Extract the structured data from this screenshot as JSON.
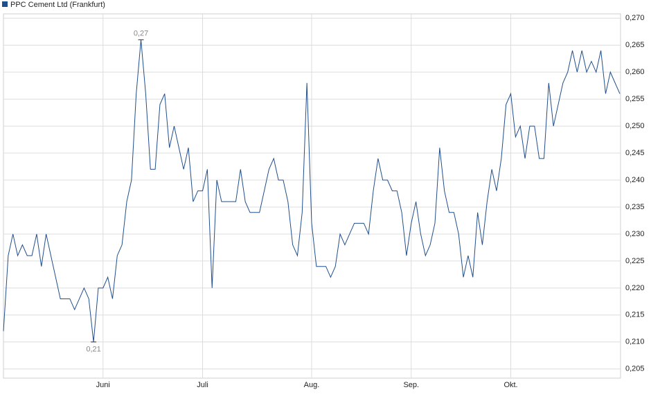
{
  "chart_data": {
    "type": "line",
    "categories": [
      null,
      null,
      null,
      null,
      null,
      null,
      null,
      null,
      null,
      null,
      null,
      null,
      null,
      null,
      null,
      null,
      null,
      null,
      null,
      null,
      null,
      "Juni",
      null,
      null,
      null,
      null,
      null,
      null,
      null,
      null,
      null,
      null,
      null,
      null,
      null,
      null,
      null,
      null,
      null,
      null,
      null,
      null,
      "Juli",
      null,
      null,
      null,
      null,
      null,
      null,
      null,
      null,
      null,
      null,
      null,
      null,
      null,
      null,
      null,
      null,
      null,
      null,
      null,
      null,
      null,
      null,
      "Aug.",
      null,
      null,
      null,
      null,
      null,
      null,
      null,
      null,
      null,
      null,
      null,
      null,
      null,
      null,
      null,
      null,
      null,
      null,
      null,
      null,
      "Sep.",
      null,
      null,
      null,
      null,
      null,
      null,
      null,
      null,
      null,
      null,
      null,
      null,
      null,
      null,
      null,
      null,
      null,
      null,
      null,
      null,
      "Okt.",
      null,
      null,
      null,
      null,
      null,
      null,
      null,
      null,
      null,
      null,
      null,
      null,
      null,
      null,
      null,
      null,
      null,
      null,
      null,
      null,
      null,
      null,
      null
    ],
    "series": [
      {
        "name": "PPC Cement Ltd (Frankfurt)",
        "color": "#1f4e8c",
        "values": [
          0.212,
          0.226,
          0.23,
          0.226,
          0.228,
          0.226,
          0.226,
          0.23,
          0.224,
          0.23,
          0.226,
          0.222,
          0.218,
          0.218,
          0.218,
          0.216,
          0.218,
          0.22,
          0.218,
          0.21,
          0.22,
          0.22,
          0.222,
          0.218,
          0.226,
          0.228,
          0.236,
          0.24,
          0.256,
          0.266,
          0.256,
          0.242,
          0.242,
          0.254,
          0.256,
          0.246,
          0.25,
          0.246,
          0.242,
          0.246,
          0.236,
          0.238,
          0.238,
          0.242,
          0.22,
          0.24,
          0.236,
          0.236,
          0.236,
          0.236,
          0.242,
          0.236,
          0.234,
          0.234,
          0.234,
          0.238,
          0.242,
          0.244,
          0.24,
          0.24,
          0.236,
          0.228,
          0.226,
          0.234,
          0.258,
          0.232,
          0.224,
          0.224,
          0.224,
          0.222,
          0.224,
          0.23,
          0.228,
          0.23,
          0.232,
          0.232,
          0.232,
          0.23,
          0.238,
          0.244,
          0.24,
          0.24,
          0.238,
          0.238,
          0.234,
          0.226,
          0.232,
          0.236,
          0.23,
          0.226,
          0.228,
          0.232,
          0.246,
          0.238,
          0.234,
          0.234,
          0.23,
          0.222,
          0.226,
          0.222,
          0.234,
          0.228,
          0.236,
          0.242,
          0.238,
          0.244,
          0.254,
          0.256,
          0.248,
          0.25,
          0.244,
          0.25,
          0.25,
          0.244,
          0.244,
          0.258,
          0.25,
          0.254,
          0.258,
          0.26,
          0.264,
          0.26,
          0.264,
          0.26,
          0.262,
          0.26,
          0.264,
          0.256,
          0.26,
          0.258,
          0.256
        ],
        "value_labels": [
          null,
          null,
          null,
          null,
          null,
          null,
          null,
          null,
          null,
          null,
          null,
          null,
          null,
          null,
          null,
          null,
          null,
          null,
          null,
          "0,21",
          null,
          null,
          null,
          null,
          null,
          null,
          null,
          null,
          null,
          "0,27",
          null,
          null,
          null,
          null,
          null,
          null,
          null,
          null,
          null,
          null,
          null,
          null,
          null,
          null,
          null,
          null,
          null,
          null,
          null,
          null,
          null,
          null,
          null,
          null,
          null,
          null,
          null,
          null,
          null,
          null,
          null,
          null,
          null,
          null,
          null,
          null,
          null,
          null,
          null,
          null,
          null,
          null,
          null,
          null,
          null,
          null,
          null,
          null,
          null,
          null,
          null,
          null,
          null,
          null,
          null,
          null,
          null,
          null,
          null,
          null,
          null,
          null,
          null,
          null,
          null,
          null,
          null,
          null,
          null,
          null,
          null,
          null,
          null,
          null,
          null,
          null,
          null,
          null,
          null,
          null,
          null,
          null,
          null,
          null,
          null,
          null,
          null,
          null,
          null,
          null,
          null,
          null,
          null,
          null,
          null,
          null,
          null,
          null,
          null,
          null,
          null
        ]
      }
    ],
    "ylim": [
      0.2033,
      0.2708
    ],
    "yticks": [
      {
        "value": 0.205,
        "label": "0,205"
      },
      {
        "value": 0.21,
        "label": "0,210"
      },
      {
        "value": 0.215,
        "label": "0,215"
      },
      {
        "value": 0.22,
        "label": "0,220"
      },
      {
        "value": 0.225,
        "label": "0,225"
      },
      {
        "value": 0.23,
        "label": "0,230"
      },
      {
        "value": 0.235,
        "label": "0,235"
      },
      {
        "value": 0.24,
        "label": "0,240"
      },
      {
        "value": 0.245,
        "label": "0,245"
      },
      {
        "value": 0.25,
        "label": "0,250"
      },
      {
        "value": 0.255,
        "label": "0,255"
      },
      {
        "value": 0.26,
        "label": "0,260"
      },
      {
        "value": 0.265,
        "label": "0,265"
      },
      {
        "value": 0.27,
        "label": "0,270"
      }
    ],
    "grid": true
  }
}
